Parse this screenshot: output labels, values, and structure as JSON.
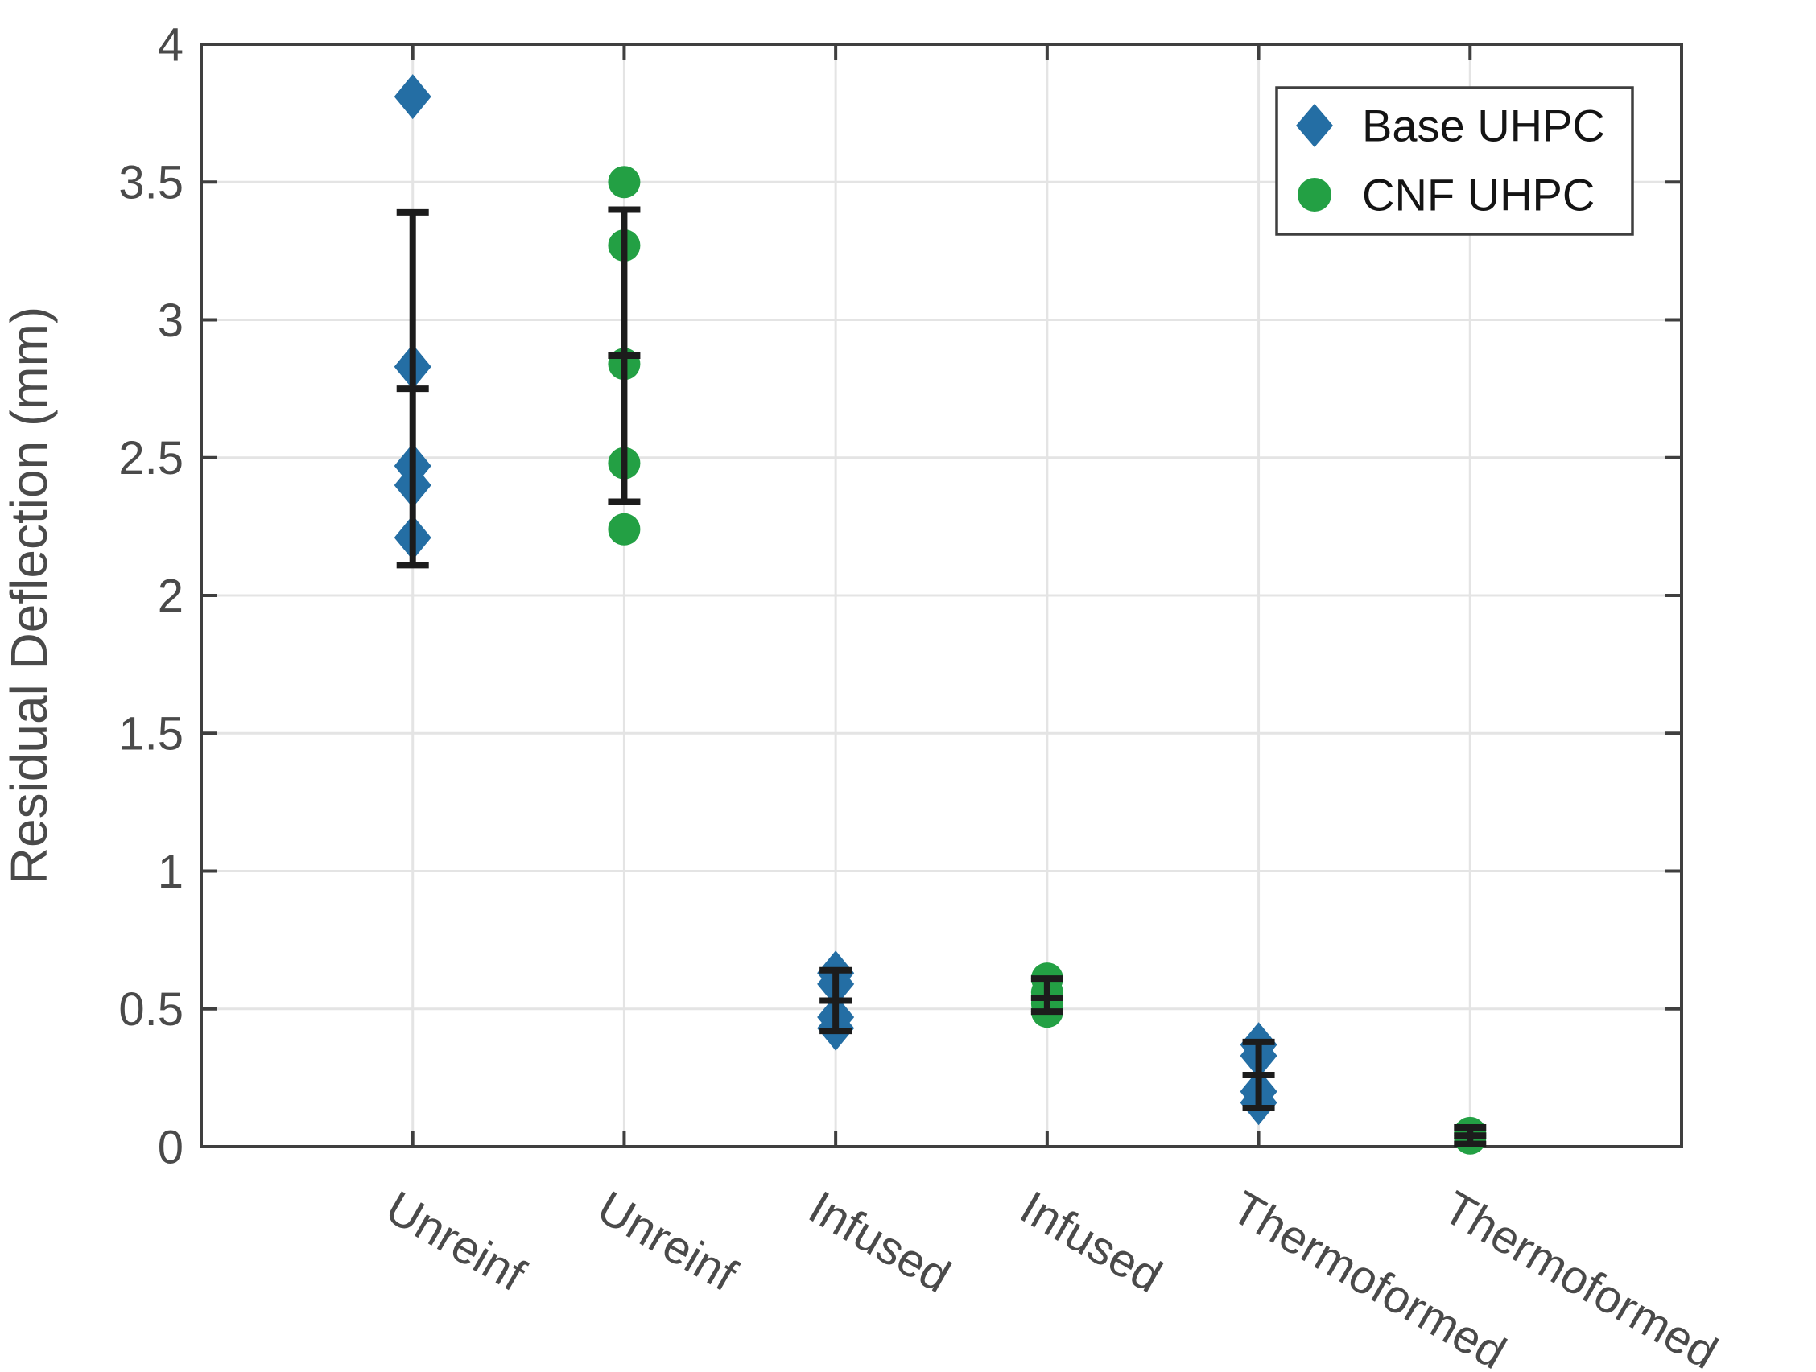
{
  "chart_data": {
    "type": "scatter",
    "title": "",
    "xlabel": "",
    "ylabel": "Residual Deflection (mm)",
    "ylim": [
      0,
      4
    ],
    "ytick_values": [
      0,
      0.5,
      1,
      1.5,
      2,
      2.5,
      3,
      3.5,
      4
    ],
    "ytick_labels": [
      "0",
      "0.5",
      "1",
      "1.5",
      "2",
      "2.5",
      "3",
      "3.5",
      "4"
    ],
    "categories": [
      "Unreinf",
      "Unreinf",
      "Infused",
      "Infused",
      "Thermoformed",
      "Thermoformed"
    ],
    "grid": true,
    "legend": {
      "position": "northeast",
      "entries": [
        {
          "label": "Base UHPC",
          "marker": "diamond",
          "color": "#246ea4"
        },
        {
          "label": "CNF UHPC",
          "marker": "circle",
          "color": "#23a044"
        }
      ]
    },
    "errorbar_color": "#1c1c1c",
    "series": [
      {
        "name": "Base UHPC",
        "marker": "diamond",
        "color": "#246ea4",
        "groups": [
          {
            "category_index": 1,
            "category": "Unreinf",
            "points": [
              3.81,
              2.83,
              2.47,
              2.4,
              2.21
            ],
            "mean": 2.75,
            "err_low": 2.11,
            "err_high": 3.39
          },
          {
            "category_index": 3,
            "category": "Infused",
            "points": [
              0.63,
              0.59,
              0.47,
              0.43
            ],
            "mean": 0.53,
            "err_low": 0.42,
            "err_high": 0.64
          },
          {
            "category_index": 5,
            "category": "Thermoformed",
            "points": [
              0.37,
              0.33,
              0.2,
              0.16
            ],
            "mean": 0.26,
            "err_low": 0.14,
            "err_high": 0.38
          }
        ]
      },
      {
        "name": "CNF UHPC",
        "marker": "circle",
        "color": "#23a044",
        "groups": [
          {
            "category_index": 2,
            "category": "Unreinf",
            "points": [
              3.5,
              3.27,
              2.84,
              2.48,
              2.24
            ],
            "mean": 2.87,
            "err_low": 2.34,
            "err_high": 3.4
          },
          {
            "category_index": 4,
            "category": "Infused",
            "points": [
              0.61,
              0.56,
              0.52,
              0.49
            ],
            "mean": 0.54,
            "err_low": 0.49,
            "err_high": 0.61
          },
          {
            "category_index": 6,
            "category": "Thermoformed",
            "points": [
              0.05,
              0.04,
              0.03
            ],
            "mean": 0.04,
            "err_low": 0.01,
            "err_high": 0.07
          }
        ]
      }
    ]
  }
}
